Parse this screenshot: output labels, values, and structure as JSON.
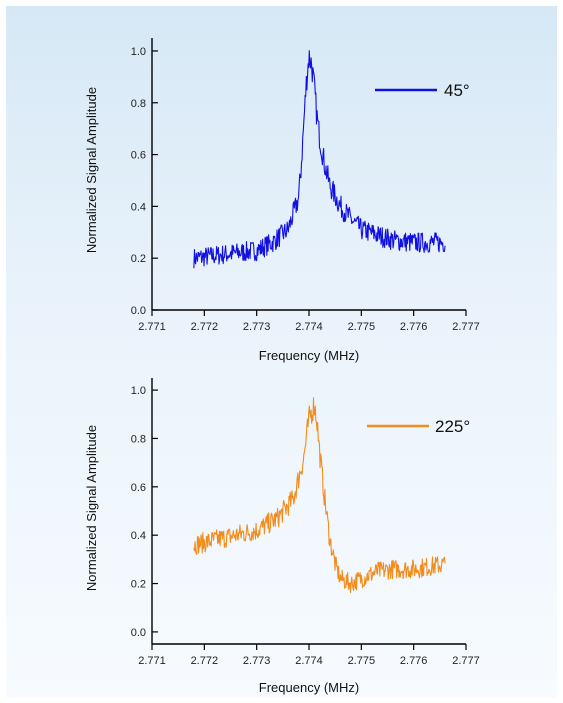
{
  "chart_data": [
    {
      "type": "line",
      "xlabel": "Frequency (MHz)",
      "ylabel": "Normalized Signal Amplitude",
      "xlim": [
        2.771,
        2.777
      ],
      "ylim": [
        0.0,
        1.05
      ],
      "xticks": [
        "2.771",
        "2.772",
        "2.773",
        "2.774",
        "2.775",
        "2.776",
        "2.777"
      ],
      "yticks": [
        "0.0",
        "0.2",
        "0.4",
        "0.6",
        "0.8",
        "1.0"
      ],
      "legend_position": "top-right",
      "grid": false,
      "series": [
        {
          "name": "45°",
          "color": "#1010e0",
          "x": [
            2.7718,
            2.7722,
            2.7726,
            2.773,
            2.7733,
            2.7736,
            2.7738,
            2.77385,
            2.7739,
            2.77395,
            2.774,
            2.77405,
            2.7741,
            2.77415,
            2.7742,
            2.7743,
            2.7744,
            2.7746,
            2.7748,
            2.775,
            2.7753,
            2.7756,
            2.776,
            2.7763,
            2.7766
          ],
          "y": [
            0.2,
            0.21,
            0.22,
            0.23,
            0.26,
            0.31,
            0.43,
            0.55,
            0.72,
            0.88,
            0.98,
            0.95,
            0.86,
            0.75,
            0.67,
            0.56,
            0.48,
            0.4,
            0.35,
            0.31,
            0.29,
            0.27,
            0.26,
            0.26,
            0.26
          ]
        }
      ]
    },
    {
      "type": "line",
      "xlabel": "Frequency (MHz)",
      "ylabel": "Normalized Signal Amplitude",
      "xlim": [
        2.771,
        2.777
      ],
      "ylim": [
        -0.05,
        1.05
      ],
      "xticks": [
        "2.771",
        "2.772",
        "2.773",
        "2.774",
        "2.775",
        "2.776",
        "2.777"
      ],
      "yticks": [
        "0.0",
        "0.2",
        "0.4",
        "0.6",
        "0.8",
        "1.0"
      ],
      "legend_position": "top-right",
      "grid": false,
      "series": [
        {
          "name": "225°",
          "color": "#f28c1c",
          "x": [
            2.7718,
            2.7722,
            2.7726,
            2.773,
            2.7734,
            2.7737,
            2.7739,
            2.774,
            2.7741,
            2.77415,
            2.7742,
            2.7743,
            2.7744,
            2.7745,
            2.7746,
            2.7748,
            2.775,
            2.7753,
            2.7756,
            2.776,
            2.7763,
            2.7766
          ],
          "y": [
            0.36,
            0.38,
            0.4,
            0.42,
            0.47,
            0.55,
            0.72,
            0.88,
            0.94,
            0.88,
            0.75,
            0.55,
            0.38,
            0.28,
            0.22,
            0.2,
            0.22,
            0.25,
            0.26,
            0.26,
            0.27,
            0.28
          ]
        }
      ]
    }
  ]
}
